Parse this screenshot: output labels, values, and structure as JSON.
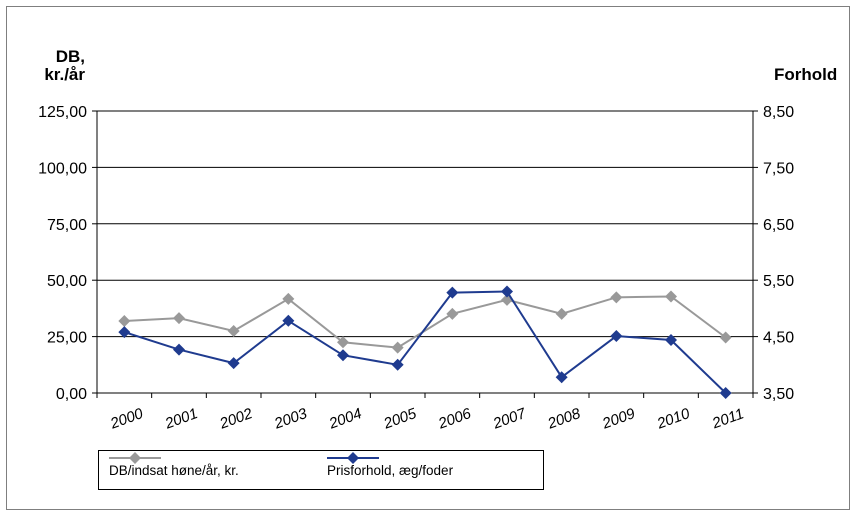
{
  "chart_data": {
    "type": "line",
    "categories": [
      "2000",
      "2001",
      "2002",
      "2003",
      "2004",
      "2005",
      "2006",
      "2007",
      "2008",
      "2009",
      "2010",
      "2011"
    ],
    "left_axis": {
      "label": "DB,\nkr./år",
      "label_lines": [
        "DB,",
        "kr./år"
      ],
      "ylim": [
        0,
        125
      ],
      "ticks": [
        "0,00",
        "25,00",
        "50,00",
        "75,00",
        "100,00",
        "125,00"
      ]
    },
    "right_axis": {
      "label": "Forhold",
      "ylim": [
        3.5,
        8.5
      ],
      "ticks": [
        "3,50",
        "4,50",
        "5,50",
        "6,50",
        "7,50",
        "8,50"
      ]
    },
    "series": [
      {
        "name": "DB/indsat høne/år, kr.",
        "axis": "left",
        "color": "#999999",
        "marker": "diamond",
        "values": [
          31.9,
          33.2,
          27.5,
          41.7,
          22.5,
          20.1,
          35.1,
          41.3,
          35.1,
          42.4,
          42.8,
          24.6
        ]
      },
      {
        "name": "Prisforhold, æg/foder",
        "axis": "right",
        "color": "#1f3b8f",
        "marker": "diamond",
        "values": [
          4.58,
          4.27,
          4.03,
          4.78,
          4.17,
          4.0,
          5.28,
          5.3,
          3.78,
          4.51,
          4.44,
          3.5
        ]
      }
    ],
    "grid": true,
    "legend_position": "bottom"
  }
}
